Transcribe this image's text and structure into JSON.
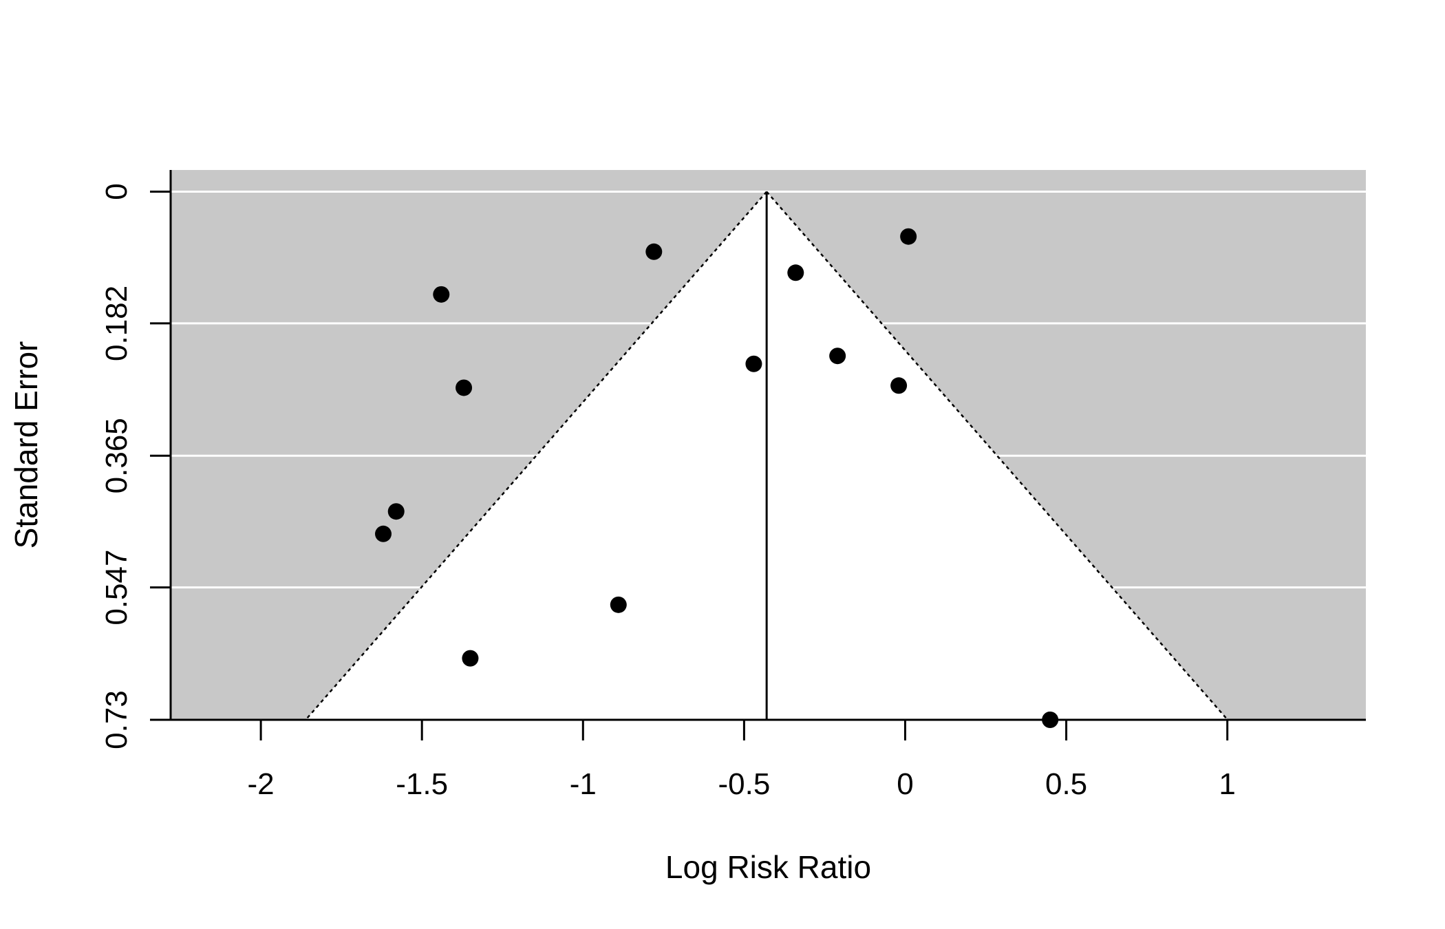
{
  "chart_data": {
    "type": "scatter",
    "subtype": "funnel-plot",
    "title": "",
    "xlabel": "Log Risk Ratio",
    "ylabel": "Standard Error",
    "xlim": [
      -2.28,
      1.43
    ],
    "ylim": [
      0.73,
      -0.03
    ],
    "y_reversed": true,
    "x_ticks": [
      -2,
      -1.5,
      -1,
      -0.5,
      0,
      0.5,
      1
    ],
    "x_tick_labels": [
      "-2",
      "-1.5",
      "-1",
      "-0.5",
      "0",
      "0.5",
      "1"
    ],
    "y_ticks": [
      0,
      0.182,
      0.365,
      0.547,
      0.73
    ],
    "y_tick_labels": [
      "0",
      "0.182",
      "0.365",
      "0.547",
      "0.73"
    ],
    "grid": "horizontal",
    "legend": "none",
    "pooled_estimate": -0.43,
    "funnel_multiplier": 1.96,
    "colors": {
      "outside_region": "#c8c8c8",
      "inside_region": "#ffffff",
      "gridline": "#ffffff",
      "points": "#000000",
      "axes": "#000000"
    },
    "points": [
      {
        "x": 0.01,
        "y": 0.062
      },
      {
        "x": -0.78,
        "y": 0.083
      },
      {
        "x": -0.34,
        "y": 0.112
      },
      {
        "x": -1.44,
        "y": 0.142
      },
      {
        "x": -0.21,
        "y": 0.227
      },
      {
        "x": -0.47,
        "y": 0.238
      },
      {
        "x": -1.37,
        "y": 0.271
      },
      {
        "x": -0.02,
        "y": 0.268
      },
      {
        "x": -1.58,
        "y": 0.442
      },
      {
        "x": -1.62,
        "y": 0.473
      },
      {
        "x": -0.89,
        "y": 0.571
      },
      {
        "x": -1.35,
        "y": 0.645
      },
      {
        "x": 0.45,
        "y": 0.73
      }
    ]
  }
}
